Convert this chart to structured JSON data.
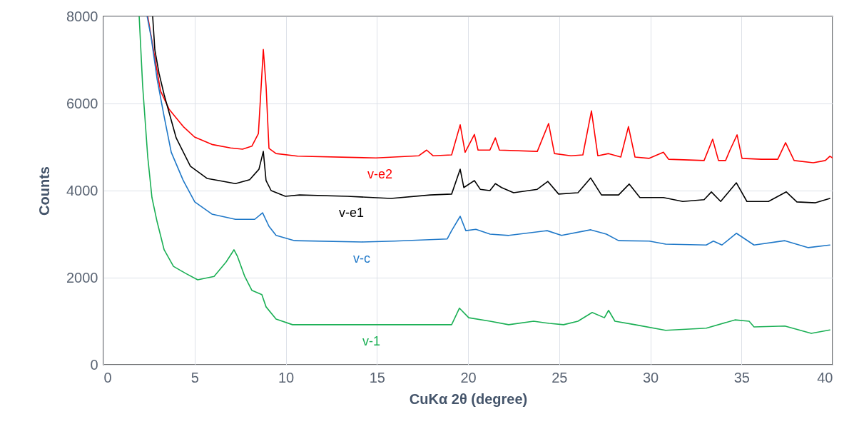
{
  "chart_data": {
    "type": "line",
    "xlabel": "CuKα 2θ (degree)",
    "ylabel": "Counts",
    "xlim": [
      0,
      40
    ],
    "xticks": [
      0,
      5,
      10,
      15,
      20,
      25,
      30,
      35,
      40
    ],
    "ylim": [
      0,
      8000
    ],
    "yticks": [
      0,
      2000,
      4000,
      6000,
      8000
    ],
    "grid": true,
    "legend": false,
    "marker": "none",
    "line_style": "solid",
    "series": [
      {
        "name": "v-e2",
        "color": "#ff0000",
        "x": [
          2.43,
          3.13,
          3.6,
          4.38,
          5.0,
          5.95,
          6.97,
          7.63,
          8.14,
          8.5,
          8.77,
          8.92,
          9.08,
          9.47,
          10.65,
          14.95,
          17.3,
          17.73,
          18.08,
          19.1,
          19.57,
          19.84,
          20.35,
          20.55,
          21.2,
          21.5,
          21.72,
          23.8,
          24.42,
          24.74,
          25.64,
          26.3,
          26.77,
          27.12,
          27.71,
          28.38,
          28.8,
          29.16,
          29.94,
          30.72,
          31.0,
          32.95,
          33.42,
          33.74,
          34.13,
          34.37,
          34.76,
          35.03,
          36.09,
          36.99,
          37.42,
          37.89,
          38.94,
          39.6,
          39.85,
          40
        ],
        "values": [
          8000,
          6290,
          5870,
          5470,
          5230,
          5060,
          4980,
          4950,
          5020,
          5310,
          7240,
          6410,
          4970,
          4850,
          4790,
          4750,
          4800,
          4930,
          4800,
          4820,
          5510,
          4880,
          5290,
          4930,
          4930,
          5210,
          4930,
          4900,
          5540,
          4850,
          4800,
          4820,
          5830,
          4800,
          4850,
          4770,
          5470,
          4770,
          4740,
          4880,
          4720,
          4690,
          5180,
          4690,
          4690,
          4930,
          5280,
          4740,
          4720,
          4720,
          5100,
          4690,
          4640,
          4690,
          4790,
          4750
        ]
      },
      {
        "name": "v-e1",
        "color": "#000000",
        "x": [
          2.7,
          2.82,
          3.05,
          3.33,
          3.99,
          4.77,
          5.68,
          6.34,
          7.24,
          8.02,
          8.53,
          8.77,
          8.92,
          9.2,
          9.98,
          10.76,
          13.39,
          15.77,
          17.93,
          19.1,
          19.57,
          19.77,
          20.35,
          20.67,
          21.2,
          21.5,
          21.84,
          22.5,
          23.8,
          24.38,
          24.97,
          26.03,
          26.73,
          27.32,
          28.26,
          28.84,
          29.43,
          30.72,
          31.78,
          32.95,
          33.35,
          33.86,
          34.72,
          35.3,
          36.48,
          37.46,
          38.04,
          39.06,
          39.85
        ],
        "values": [
          8000,
          7230,
          6690,
          6200,
          5210,
          4560,
          4280,
          4230,
          4160,
          4250,
          4490,
          4900,
          4230,
          4000,
          3870,
          3900,
          3870,
          3820,
          3900,
          3920,
          4490,
          4070,
          4230,
          4030,
          4000,
          4160,
          4070,
          3950,
          4030,
          4210,
          3920,
          3950,
          4290,
          3900,
          3900,
          4150,
          3840,
          3840,
          3750,
          3790,
          3970,
          3750,
          4180,
          3750,
          3750,
          3970,
          3740,
          3720,
          3820
        ]
      },
      {
        "name": "v-c",
        "color": "#1f78c8",
        "x": [
          2.4,
          2.62,
          2.94,
          3.33,
          3.72,
          4.38,
          5.01,
          5.95,
          7.24,
          8.3,
          8.73,
          9.08,
          9.47,
          10.49,
          14.17,
          15.97,
          18.86,
          19.1,
          19.57,
          19.88,
          20.43,
          21.21,
          22.23,
          24.34,
          25.13,
          26.73,
          27.59,
          28.26,
          29.94,
          30.84,
          33.07,
          33.46,
          33.93,
          34.72,
          35.69,
          37.38,
          38.67,
          39.85
        ],
        "values": [
          8000,
          7510,
          6570,
          5700,
          4880,
          4230,
          3740,
          3460,
          3340,
          3340,
          3490,
          3180,
          2970,
          2850,
          2820,
          2840,
          2890,
          3080,
          3410,
          3080,
          3110,
          3000,
          2970,
          3080,
          2970,
          3100,
          3000,
          2850,
          2840,
          2770,
          2750,
          2840,
          2750,
          3020,
          2750,
          2850,
          2690,
          2750
        ]
      },
      {
        "name": "v-1",
        "color": "#1aaf54",
        "x": [
          1.96,
          2.15,
          2.43,
          2.66,
          2.94,
          3.33,
          3.84,
          4.5,
          5.17,
          6.07,
          6.73,
          7.16,
          7.36,
          7.75,
          8.14,
          8.69,
          8.92,
          9.47,
          10.37,
          14.68,
          17.3,
          19.1,
          19.53,
          20.04,
          21.21,
          22.23,
          23.6,
          24.46,
          25.24,
          26.03,
          26.81,
          27.48,
          27.71,
          28.06,
          29.16,
          30.84,
          33.07,
          34.64,
          35.42,
          35.69,
          37.38,
          38.83,
          39.85
        ],
        "values": [
          8000,
          6410,
          4770,
          3840,
          3290,
          2640,
          2260,
          2100,
          1950,
          2030,
          2360,
          2640,
          2480,
          2030,
          1710,
          1610,
          1330,
          1050,
          920,
          920,
          920,
          920,
          1300,
          1080,
          1000,
          920,
          1000,
          950,
          920,
          1000,
          1200,
          1080,
          1250,
          1000,
          920,
          790,
          840,
          1030,
          1000,
          870,
          890,
          720,
          800
        ]
      }
    ]
  }
}
